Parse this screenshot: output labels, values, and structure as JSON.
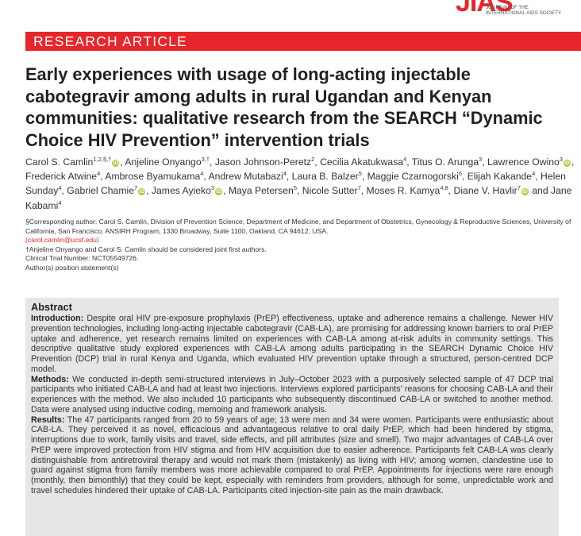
{
  "journal": {
    "logo_mark": "JIAS",
    "logo_line1": "JOURNAL OF THE",
    "logo_line2": "INTERNATIONAL AIDS SOCIETY",
    "brand_color": "#e5262b"
  },
  "article_type": "RESEARCH ARTICLE",
  "title": "Early experiences with usage of long-acting injectable cabotegravir among adults in rural Ugandan and Kenyan communities: qualitative research from the SEARCH “Dynamic Choice HIV Prevention” intervention trials",
  "authors": [
    {
      "name": "Carol S. Camlin",
      "sup": "1,2,§,†",
      "orcid": true,
      "sep": ", "
    },
    {
      "name": "Anjeline Onyango",
      "sup": "3,†",
      "orcid": false,
      "sep": ", "
    },
    {
      "name": "Jason Johnson-Peretz",
      "sup": "2",
      "orcid": false,
      "sep": ", "
    },
    {
      "name": "Cecilia Akatukwasa",
      "sup": "4",
      "orcid": false,
      "sep": ", "
    },
    {
      "name": "Titus O. Arunga",
      "sup": "3",
      "orcid": false,
      "sep": ", "
    },
    {
      "name": "Lawrence Owino",
      "sup": "3",
      "orcid": true,
      "sep": ", "
    },
    {
      "name": "Frederick Atwine",
      "sup": "4",
      "orcid": false,
      "sep": ", "
    },
    {
      "name": "Ambrose Byamukama",
      "sup": "4",
      "orcid": false,
      "sep": ", "
    },
    {
      "name": "Andrew Mutabazi",
      "sup": "4",
      "orcid": false,
      "sep": ", "
    },
    {
      "name": "Laura B. Balzer",
      "sup": "5",
      "orcid": false,
      "sep": ", "
    },
    {
      "name": "Maggie Czarnogorski",
      "sup": "6",
      "orcid": false,
      "sep": ", "
    },
    {
      "name": "Elijah Kakande",
      "sup": "4",
      "orcid": false,
      "sep": ", "
    },
    {
      "name": "Helen Sunday",
      "sup": "4",
      "orcid": false,
      "sep": ", "
    },
    {
      "name": "Gabriel Chamie",
      "sup": "7",
      "orcid": true,
      "sep": ", "
    },
    {
      "name": "James Ayieko",
      "sup": "3",
      "orcid": true,
      "sep": ", "
    },
    {
      "name": "Maya Petersen",
      "sup": "5",
      "orcid": false,
      "sep": ", "
    },
    {
      "name": "Nicole Sutter",
      "sup": "7",
      "orcid": false,
      "sep": ", "
    },
    {
      "name": "Moses R. Kamya",
      "sup": "4,8",
      "orcid": false,
      "sep": ", "
    },
    {
      "name": "Diane V. Havlir",
      "sup": "7",
      "orcid": true,
      "sep": " and "
    },
    {
      "name": "Jane Kabami",
      "sup": "4",
      "orcid": false,
      "sep": ""
    }
  ],
  "notes": {
    "corresponding": "§Corresponding author: Carol S. Camlin, Division of Prevention Science, Department of Medicine, and Department of Obstetrics, Gynecology & Reproductive Sciences, University of California, San Francisco, ANSIRH Program, 1330 Broadway, Suite 1100, Oakland, CA 94612, USA.",
    "email": "(carol.camlin@ucsf.edu)",
    "joint": "†Anjeline Onyango and Carol S. Camlin should be considered joint first authors.",
    "trial": "Clinical Trial Number: NCT05549726.",
    "position": "Author(s) position statement(s)"
  },
  "abstract": {
    "heading": "Abstract",
    "sections": [
      {
        "label": "Introduction:",
        "text": " Despite oral HIV pre-exposure prophylaxis (PrEP) effectiveness, uptake and adherence remains a challenge. Newer HIV prevention technologies, including long-acting injectable cabotegravir (CAB-LA), are promising for addressing known barriers to oral PrEP uptake and adherence, yet research remains limited on experiences with CAB-LA among at-risk adults in community settings. This descriptive qualitative study explored experiences with CAB-LA among adults participating in the SEARCH Dynamic Choice HIV Prevention (DCP) trial in rural Kenya and Uganda, which evaluated HIV prevention uptake through a structured, person-centred DCP model."
      },
      {
        "label": "Methods:",
        "text": " We conducted in-depth semi-structured interviews in July–October 2023 with a purposively selected sample of 47 DCP trial participants who initiated CAB-LA and had at least two injections. Interviews explored participants’ reasons for choosing CAB-LA and their experiences with the method. We also included 10 participants who subsequently discontinued CAB-LA or switched to another method. Data were analysed using inductive coding, memoing and framework analysis."
      },
      {
        "label": "Results:",
        "text": " The 47 participants ranged from 20 to 59 years of age; 13 were men and 34 were women. Participants were enthusiastic about CAB-LA. They perceived it as novel, efficacious and advantageous relative to oral daily PrEP, which had been hindered by stigma, interruptions due to work, family visits and travel, side effects, and pill attributes (size and smell). Two major advantages of CAB-LA over PrEP were improved protection from HIV stigma and from HIV acquisition due to easier adherence. Participants felt CAB-LA was clearly distinguishable from antiretroviral therapy and would not mark them (mistakenly) as living with HIV; among women, clandestine use to guard against stigma from family members was more achievable compared to oral PrEP. Appointments for injections were rare enough (monthly, then bimonthly) that they could be kept, especially with reminders from providers, although for some, unpredictable work and travel schedules hindered their uptake of CAB-LA. Participants cited injection-site pain as the main drawback."
      }
    ]
  }
}
